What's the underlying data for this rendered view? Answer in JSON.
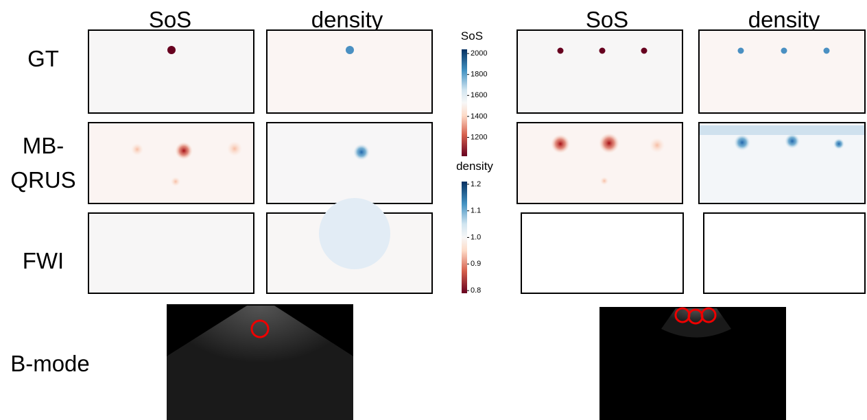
{
  "column_titles": [
    "SoS",
    "density",
    "SoS",
    "density"
  ],
  "row_labels": [
    [
      "GT"
    ],
    [
      "MB-",
      "QRUS"
    ],
    [
      "FWI"
    ],
    [
      "B-mode"
    ]
  ],
  "colorbars": [
    {
      "title": "SoS",
      "lim": [
        1020,
        2040
      ],
      "ticks": [
        2000,
        1800,
        1600,
        1400,
        1200
      ]
    },
    {
      "title": "density",
      "lim": [
        0.79,
        1.21
      ],
      "ticks": [
        1.2,
        1.1,
        {
          "value": 1.0,
          "label": "1.0"
        },
        0.9,
        0.8
      ]
    }
  ]
}
